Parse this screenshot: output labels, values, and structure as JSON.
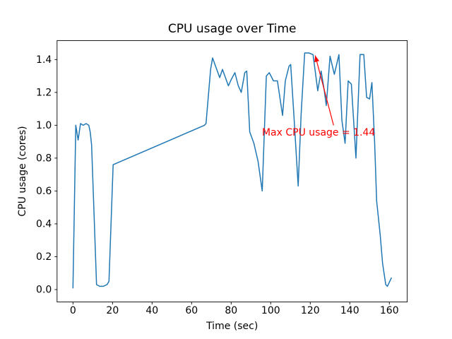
{
  "chart_data": {
    "type": "line",
    "title": "CPU usage over Time",
    "xlabel": "Time (sec)",
    "ylabel": "CPU usage (cores)",
    "xlim": [
      -8.05,
      169.05
    ],
    "ylim": [
      -0.0756,
      1.5156
    ],
    "grid": false,
    "legend": null,
    "xticks": {
      "values": [
        0,
        20,
        40,
        60,
        80,
        100,
        120,
        140,
        160
      ],
      "labels": [
        "0",
        "20",
        "40",
        "60",
        "80",
        "100",
        "120",
        "140",
        "160"
      ]
    },
    "yticks": {
      "values": [
        0.0,
        0.2,
        0.4,
        0.6,
        0.8,
        1.0,
        1.2,
        1.4
      ],
      "labels": [
        "0.0",
        "0.2",
        "0.4",
        "0.6",
        "0.8",
        "1.0",
        "1.2",
        "1.4"
      ]
    },
    "series": [
      {
        "name": "cpu_usage",
        "color": "#1f77b4",
        "line_width": 1.5,
        "points": [
          [
            0.0,
            0.01
          ],
          [
            1.4,
            1.0
          ],
          [
            2.6,
            0.91
          ],
          [
            3.8,
            1.01
          ],
          [
            5.2,
            1.0
          ],
          [
            6.6,
            1.01
          ],
          [
            8.0,
            1.0
          ],
          [
            8.7,
            0.96
          ],
          [
            9.4,
            0.88
          ],
          [
            11.9,
            0.03
          ],
          [
            13.5,
            0.02
          ],
          [
            15.3,
            0.02
          ],
          [
            17.2,
            0.03
          ],
          [
            18.2,
            0.05
          ],
          [
            20.3,
            0.76
          ],
          [
            66.5,
            1.0
          ],
          [
            67.3,
            1.01
          ],
          [
            69.6,
            1.34
          ],
          [
            70.6,
            1.41
          ],
          [
            72.4,
            1.35
          ],
          [
            74.2,
            1.29
          ],
          [
            75.6,
            1.34
          ],
          [
            77.1,
            1.29
          ],
          [
            78.6,
            1.24
          ],
          [
            80.1,
            1.28
          ],
          [
            81.9,
            1.32
          ],
          [
            83.6,
            1.24
          ],
          [
            85.1,
            1.2
          ],
          [
            86.9,
            1.32
          ],
          [
            87.9,
            1.33
          ],
          [
            89.4,
            0.96
          ],
          [
            91.5,
            0.89
          ],
          [
            93.6,
            0.78
          ],
          [
            95.7,
            0.6
          ],
          [
            97.8,
            1.3
          ],
          [
            99.3,
            1.32
          ],
          [
            101.4,
            1.27
          ],
          [
            103.4,
            1.27
          ],
          [
            105.0,
            1.14
          ],
          [
            106.0,
            1.06
          ],
          [
            107.4,
            1.27
          ],
          [
            109.3,
            1.36
          ],
          [
            110.1,
            1.37
          ],
          [
            111.7,
            1.07
          ],
          [
            113.9,
            0.63
          ],
          [
            115.4,
            1.07
          ],
          [
            117.2,
            1.44
          ],
          [
            119.3,
            1.44
          ],
          [
            121.4,
            1.43
          ],
          [
            122.6,
            1.32
          ],
          [
            123.8,
            1.21
          ],
          [
            125.5,
            1.33
          ],
          [
            127.1,
            1.21
          ],
          [
            128.1,
            1.12
          ],
          [
            130.0,
            1.42
          ],
          [
            132.2,
            1.31
          ],
          [
            134.5,
            1.43
          ],
          [
            136.0,
            1.03
          ],
          [
            137.6,
            0.89
          ],
          [
            139.2,
            1.27
          ],
          [
            140.8,
            1.25
          ],
          [
            143.1,
            0.8
          ],
          [
            145.2,
            1.43
          ],
          [
            147.1,
            1.43
          ],
          [
            148.5,
            1.17
          ],
          [
            150.0,
            1.16
          ],
          [
            151.2,
            1.26
          ],
          [
            152.6,
            0.89
          ],
          [
            153.6,
            0.54
          ],
          [
            155.4,
            0.33
          ],
          [
            156.6,
            0.16
          ],
          [
            158.2,
            0.03
          ],
          [
            159.0,
            0.02
          ],
          [
            161.0,
            0.07
          ]
        ]
      }
    ],
    "annotation": {
      "text": "Max CPU usage = 1.44",
      "color": "#ff0000",
      "max_value": 1.44,
      "text_pos": [
        95.6,
        0.938
      ],
      "arrow_tail": [
        131.8,
        1.0
      ],
      "arrow_head": [
        122.5,
        1.425
      ]
    },
    "colors": {
      "background": "#ffffff",
      "spine": "#000000",
      "text": "#000000"
    }
  }
}
